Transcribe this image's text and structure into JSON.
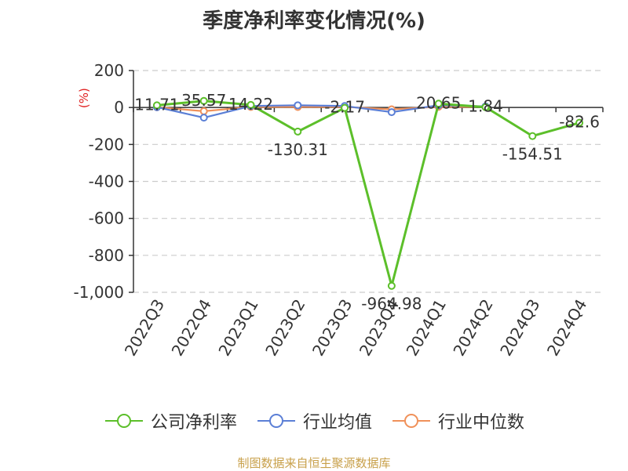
{
  "chart_data": {
    "type": "line",
    "title": "季度净利率变化情况(%)",
    "ylabel": "(%)",
    "xlabel": "",
    "categories": [
      "2022Q3",
      "2022Q4",
      "2023Q1",
      "2023Q2",
      "2023Q3",
      "2023Q4",
      "2024Q1",
      "2024Q2",
      "2024Q3",
      "2024Q4"
    ],
    "ylim": [
      -1000,
      200
    ],
    "yticks": [
      200,
      0,
      -200,
      -400,
      -600,
      -800,
      -1000
    ],
    "ytick_labels": [
      "200",
      "0",
      "-200",
      "-400",
      "-600",
      "-800",
      "-1,000"
    ],
    "grid": true,
    "legend_position": "bottom",
    "series": [
      {
        "name": "公司净利率",
        "color": "#5cbf2a",
        "values": [
          11.71,
          35.57,
          14.22,
          -130.31,
          -2.17,
          -964.98,
          20.65,
          1.84,
          -154.51,
          -82.6
        ],
        "labels": [
          "11.71",
          "35.57",
          "14.22",
          "-130.31",
          "-2.17",
          "-964.98",
          "20.65",
          "1.84",
          "-154.51",
          "-82.6"
        ]
      },
      {
        "name": "行业均值",
        "color": "#5b7fd6",
        "values": [
          2,
          -55,
          8,
          12,
          8,
          -25,
          12,
          6,
          null,
          null
        ]
      },
      {
        "name": "行业中位数",
        "color": "#f0915a",
        "values": [
          2,
          -20,
          3,
          3,
          3,
          -10,
          4,
          3,
          null,
          null
        ]
      }
    ]
  },
  "footer": {
    "source": "制图数据来自恒生聚源数据库"
  }
}
